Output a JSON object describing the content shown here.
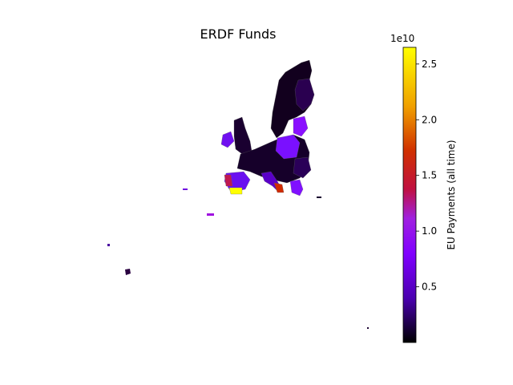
{
  "title": "ERDF Funds",
  "colorbar": {
    "label": "EU Payments (all time)",
    "multiplier": "1e10",
    "colormap": "gnuplot",
    "min": 0.0,
    "max": 2.65,
    "ticks": [
      {
        "value": 0.5,
        "label": "0.5"
      },
      {
        "value": 1.0,
        "label": "1.0"
      },
      {
        "value": 1.5,
        "label": "1.5"
      },
      {
        "value": 2.0,
        "label": "2.0"
      },
      {
        "value": 2.5,
        "label": "2.5"
      }
    ],
    "gradient_colors": [
      "#000000",
      "#4a00b0",
      "#8000ff",
      "#a020e0",
      "#c01040",
      "#e05a00",
      "#f0a000",
      "#ffff00"
    ]
  },
  "map": {
    "background": "#ffffff",
    "border_color": "#666666"
  }
}
